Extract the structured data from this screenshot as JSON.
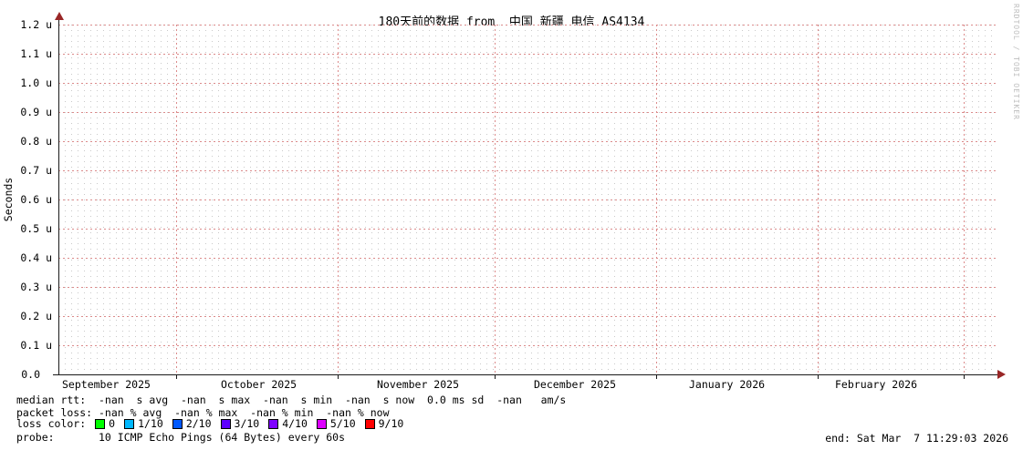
{
  "title": "180天前的数据 from  中国 新疆 电信 AS4134",
  "watermark": "RRDTOOL / TOBI OETIKER",
  "chart_data": {
    "type": "line",
    "title": "180天前的数据 from  中国 新疆 电信 AS4134",
    "ylabel": "Seconds",
    "ylim": [
      "0.0",
      "1.2 u"
    ],
    "y_ticks": [
      "1.2 u",
      "1.1 u",
      "1.0 u",
      "0.9 u",
      "0.8 u",
      "0.7 u",
      "0.6 u",
      "0.5 u",
      "0.4 u",
      "0.3 u",
      "0.2 u",
      "0.1 u",
      "0.0"
    ],
    "x_ticks": [
      "September 2025",
      "October 2025",
      "November 2025",
      "December 2025",
      "January 2026",
      "February 2026"
    ],
    "series": [],
    "grid": "on",
    "legend_position": "below"
  },
  "legend": {
    "median_rtt": "median rtt:  -nan  s avg  -nan  s max  -nan  s min  -nan  s now  0.0 ms sd  -nan   am/s",
    "packet_loss": "packet loss: -nan % avg  -nan % max  -nan % min  -nan % now",
    "loss_color_label": "loss color:",
    "loss_colors": [
      {
        "label": "0",
        "color": "#00ff00"
      },
      {
        "label": "1/10",
        "color": "#00b8ff"
      },
      {
        "label": "2/10",
        "color": "#0059ff"
      },
      {
        "label": "3/10",
        "color": "#5e00ff"
      },
      {
        "label": "4/10",
        "color": "#7e00ff"
      },
      {
        "label": "5/10",
        "color": "#dd00ff"
      },
      {
        "label": "9/10",
        "color": "#ff0000"
      }
    ],
    "probe": "probe:       10 ICMP Echo Pings (64 Bytes) every 60s",
    "end": "end: Sat Mar  7 11:29:03 2026"
  },
  "colors": {
    "major_grid": "#db8a8a",
    "minor_grid": "#c9c9c9",
    "axis": "#1a1a1a",
    "arrow": "#992626",
    "background": "#ffffff"
  }
}
